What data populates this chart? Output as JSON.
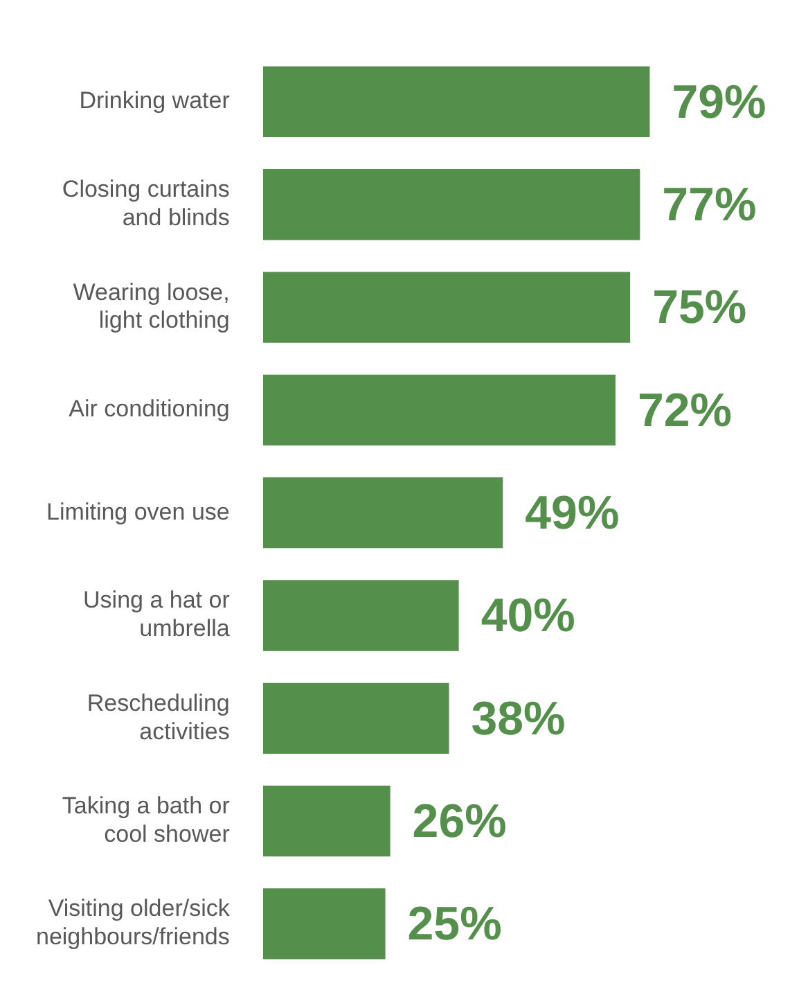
{
  "chart_data": {
    "type": "bar",
    "orientation": "horizontal",
    "categories": [
      "Drinking water",
      "Closing curtains and blinds",
      "Wearing loose, light clothing",
      "Air conditioning",
      "Limiting oven use",
      "Using a hat or umbrella",
      "Rescheduling activities",
      "Taking a bath or cool shower",
      "Visiting older/sick neighbours/friends"
    ],
    "values": [
      79,
      77,
      75,
      72,
      49,
      40,
      38,
      26,
      25
    ],
    "value_labels": [
      "79%",
      "77%",
      "75%",
      "72%",
      "49%",
      "40%",
      "38%",
      "26%",
      "25%"
    ],
    "color": "#548f4c",
    "grid": false,
    "legend": false,
    "tick_labels": "y"
  }
}
